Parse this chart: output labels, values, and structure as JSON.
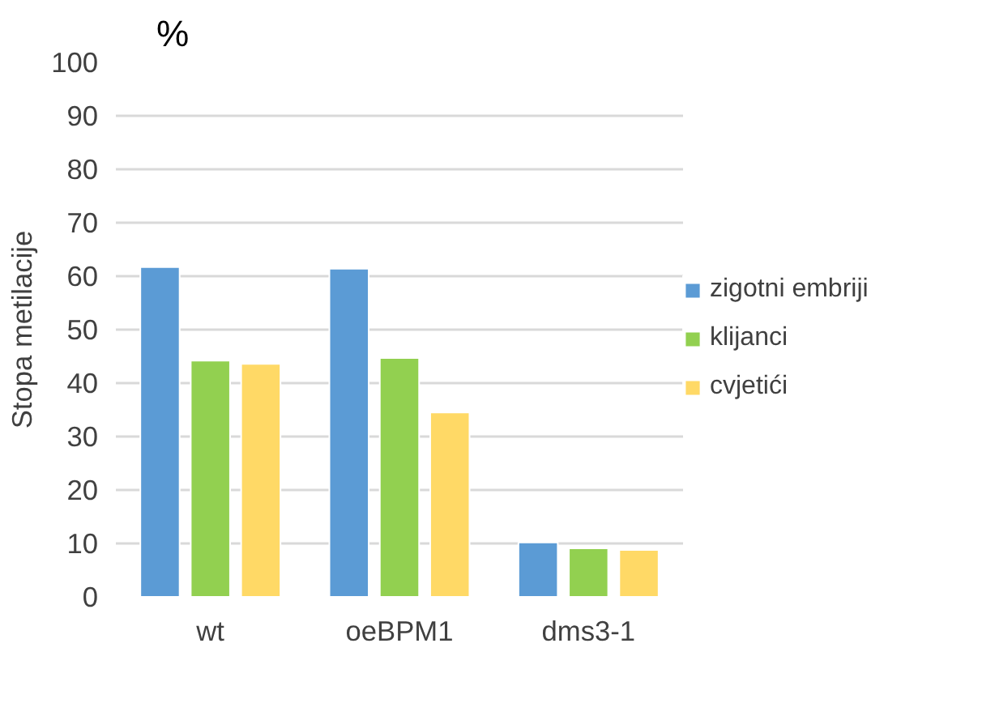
{
  "chart_data": {
    "type": "bar",
    "ylabel": "Stopa metilacije",
    "annotations": [
      "%"
    ],
    "categories": [
      "wt",
      "oeBPM1",
      "dms3-1"
    ],
    "series": [
      {
        "name": "zigotni embriji",
        "color": "#5b9bd5",
        "values": [
          61.7,
          61.4,
          10.2
        ]
      },
      {
        "name": "klijanci",
        "color": "#92d050",
        "values": [
          44.2,
          44.7,
          9.1
        ]
      },
      {
        "name": "cvjetići",
        "color": "#ffd966",
        "values": [
          43.6,
          34.5,
          8.8
        ]
      }
    ],
    "ylim": [
      0,
      100
    ],
    "yticks": [
      0,
      10,
      20,
      30,
      40,
      50,
      60,
      70,
      80,
      90,
      100
    ],
    "grid": "y",
    "legend": "right"
  }
}
